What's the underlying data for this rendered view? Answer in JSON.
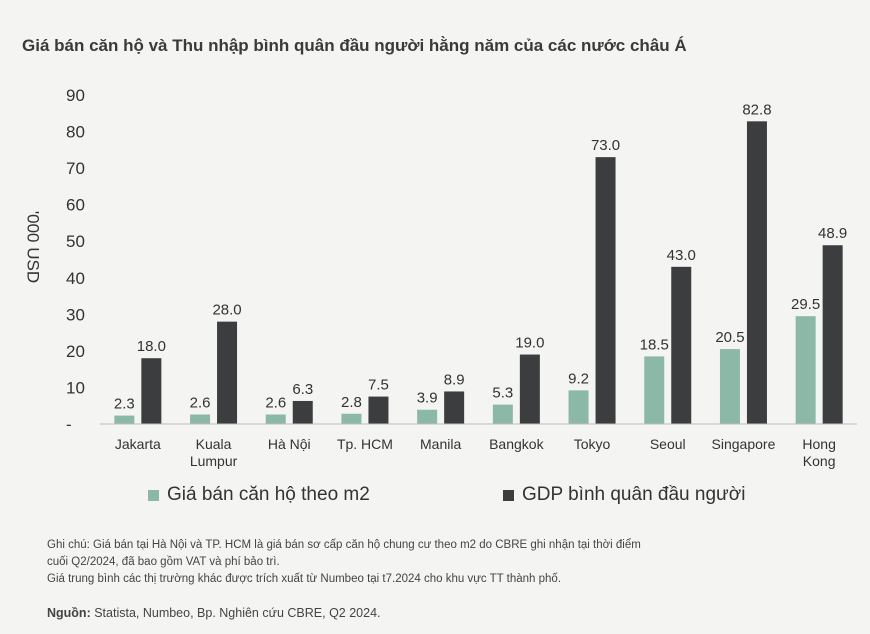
{
  "chart_data": {
    "type": "bar",
    "title": "Giá bán căn hộ và Thu nhập bình quân đầu người hằng năm của các nước châu Á",
    "ylabel": "'000 USD",
    "xlabel": "",
    "ylim": [
      0,
      90
    ],
    "yticks": [
      "-",
      "10",
      "20",
      "30",
      "40",
      "50",
      "60",
      "70",
      "80",
      "90"
    ],
    "categories": [
      [
        "Jakarta"
      ],
      [
        "Kuala",
        "Lumpur"
      ],
      [
        "Hà Nội"
      ],
      [
        "Tp. HCM"
      ],
      [
        "Manila"
      ],
      [
        "Bangkok"
      ],
      [
        "Tokyo"
      ],
      [
        "Seoul"
      ],
      [
        "Singapore"
      ],
      [
        "Hong",
        "Kong"
      ]
    ],
    "series": [
      {
        "name": "Giá bán căn hộ theo m2",
        "color": "#8cb8a8",
        "values": [
          2.3,
          2.6,
          2.6,
          2.8,
          3.9,
          5.3,
          9.2,
          18.5,
          20.5,
          29.5
        ],
        "labels": [
          "2.3",
          "2.6",
          "2.6",
          "2.8",
          "3.9",
          "5.3",
          "9.2",
          "18.5",
          "20.5",
          "29.5"
        ]
      },
      {
        "name": "GDP bình quân đầu người",
        "color": "#3b3d3e",
        "values": [
          18.0,
          28.0,
          6.3,
          7.5,
          8.9,
          19.0,
          73.0,
          43.0,
          82.8,
          48.9
        ],
        "labels": [
          "18.0",
          "28.0",
          "6.3",
          "7.5",
          "8.9",
          "19.0",
          "73.0",
          "43.0",
          "82.8",
          "48.9"
        ]
      }
    ],
    "legend_position": "bottom"
  },
  "notes": {
    "line1": "Ghi chú: Giá bán tại Hà Nội và TP. HCM là giá bán sơ cấp căn hộ chung cư theo m2 do CBRE ghi nhận tại thời điểm",
    "line2": "cuối Q2/2024, đã bao gồm VAT và phí bảo trì.",
    "line3": "Giá trung bình các thị trường khác được trích xuất từ Numbeo tại t7.2024 cho khu vực TT thành phố."
  },
  "source": {
    "label": "Nguồn:",
    "text": " Statista, Numbeo, Bp. Nghiên cứu CBRE, Q2 2024."
  }
}
